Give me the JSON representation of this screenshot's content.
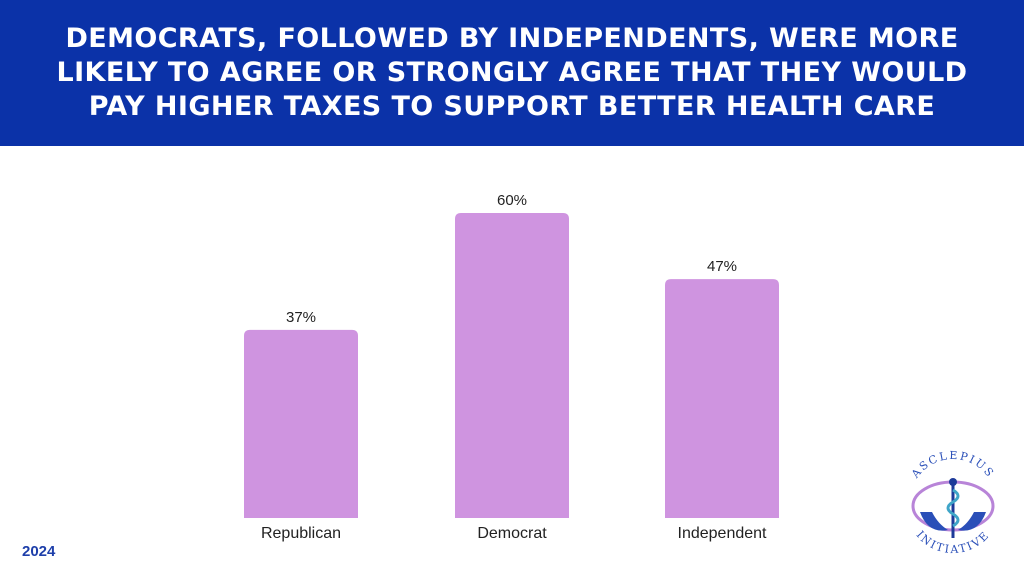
{
  "header": {
    "title": "DEMOCRATS, FOLLOWED BY INDEPENDENTS, WERE MORE LIKELY TO AGREE OR STRONGLY AGREE THAT THEY WOULD PAY HIGHER TAXES TO SUPPORT BETTER HEALTH CARE"
  },
  "footer": {
    "year": "2024"
  },
  "logo": {
    "top_text": "ASCLEPIUS",
    "bottom_text": "INITIATIVE"
  },
  "colors": {
    "header_bg": "#0b32a8",
    "bar": "#cf94e0",
    "year_text": "#1e3faa"
  },
  "chart_data": {
    "type": "bar",
    "title": "DEMOCRATS, FOLLOWED BY INDEPENDENTS, WERE MORE LIKELY TO AGREE OR STRONGLY AGREE THAT THEY WOULD PAY HIGHER TAXES TO SUPPORT BETTER HEALTH CARE",
    "categories": [
      "Republican",
      "Democrat",
      "Independent"
    ],
    "values": [
      37,
      60,
      47
    ],
    "value_labels": [
      "37%",
      "60%",
      "47%"
    ],
    "xlabel": "",
    "ylabel": "",
    "ylim": [
      0,
      60
    ],
    "grid": false,
    "legend": "none"
  }
}
